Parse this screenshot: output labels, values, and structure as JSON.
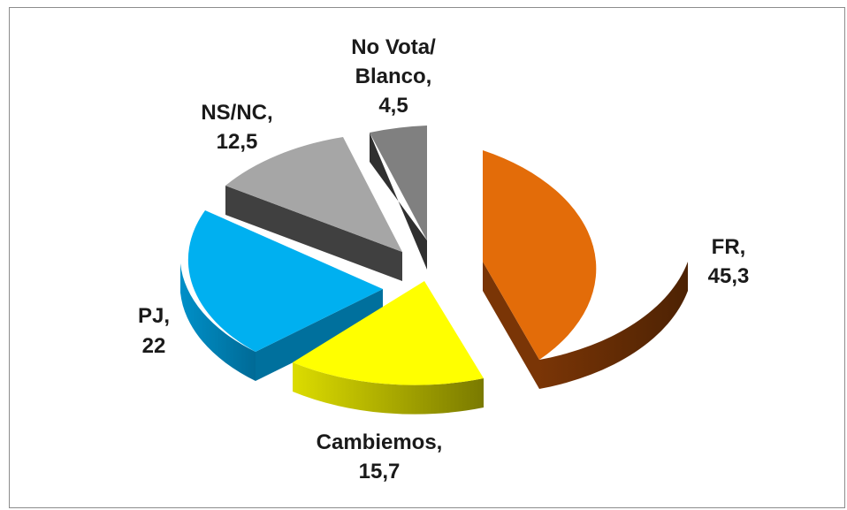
{
  "chart_data": {
    "type": "pie",
    "style": "3d-exploded",
    "slices": [
      {
        "name": "FR",
        "value": 45.3,
        "label": "FR,",
        "value_text": "45,3",
        "color": "#e36c09"
      },
      {
        "name": "Cambiemos",
        "value": 15.7,
        "label": "Cambiemos,",
        "value_text": "15,7",
        "color": "#ffff00"
      },
      {
        "name": "PJ",
        "value": 22,
        "label": "PJ,",
        "value_text": "22",
        "color": "#00b0f0"
      },
      {
        "name": "NS/NC",
        "value": 12.5,
        "label": "NS/NC,",
        "value_text": "12,5",
        "color": "#a6a6a6"
      },
      {
        "name": "No Vota/ Blanco",
        "value": 4.5,
        "label": "No Vota/",
        "label2": "Blanco,",
        "value_text": "4,5",
        "color": "#808080"
      }
    ]
  }
}
